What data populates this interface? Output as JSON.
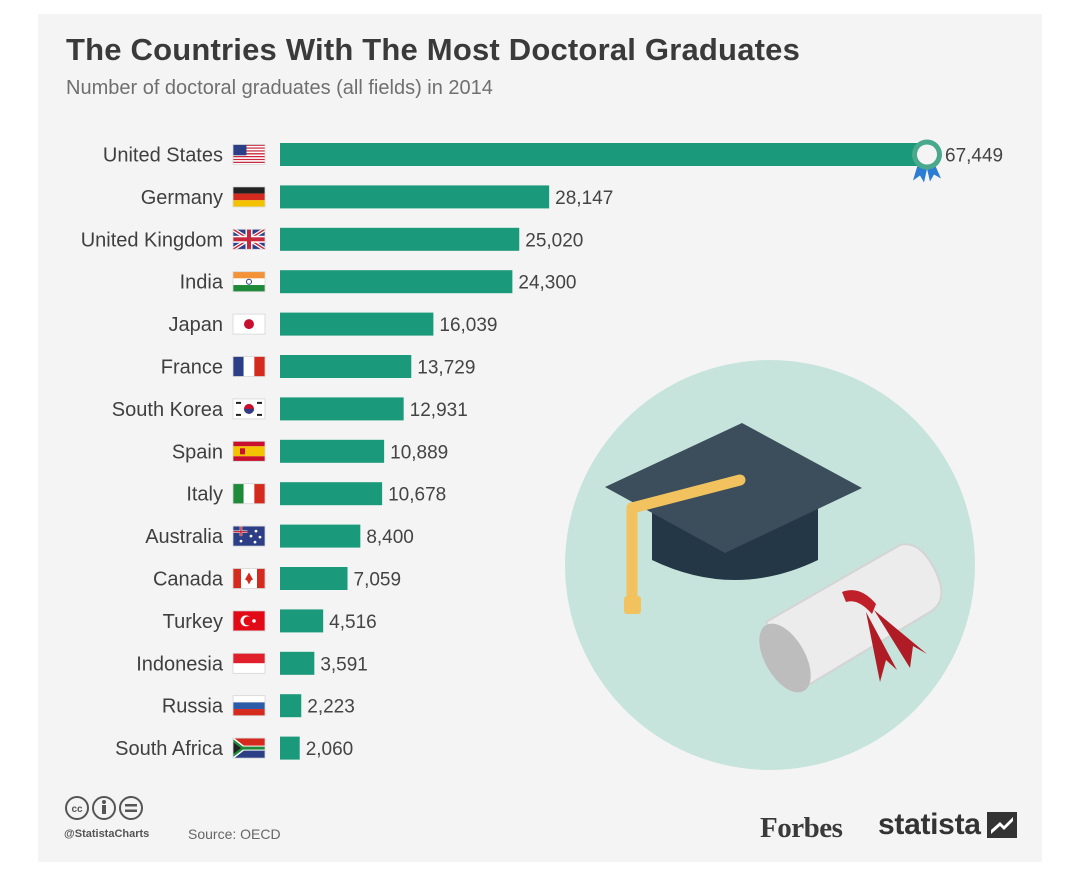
{
  "header": {
    "title": "The Countries With The Most Doctoral Graduates",
    "subtitle": "Number of doctoral graduates (all fields) in 2014"
  },
  "colors": {
    "bar": "#1a9a7b",
    "background": "#f4f4f4",
    "circle": "#c6e4db",
    "text": "#3f3f3f"
  },
  "chart_data": {
    "type": "bar",
    "orientation": "horizontal",
    "categories": [
      "United States",
      "Germany",
      "United Kingdom",
      "India",
      "Japan",
      "France",
      "South Korea",
      "Spain",
      "Italy",
      "Australia",
      "Canada",
      "Turkey",
      "Indonesia",
      "Russia",
      "South Africa"
    ],
    "values": [
      67449,
      28147,
      25020,
      24300,
      16039,
      13729,
      12931,
      10889,
      10678,
      8400,
      7059,
      4516,
      3591,
      2223,
      2060
    ],
    "value_labels": [
      "67,449",
      "28,147",
      "25,020",
      "24,300",
      "16,039",
      "13,729",
      "12,931",
      "10,889",
      "10,678",
      "8,400",
      "7,059",
      "4,516",
      "3,591",
      "2,223",
      "2,060"
    ],
    "flags": [
      "us-flag",
      "germany-flag",
      "uk-flag",
      "india-flag",
      "japan-flag",
      "france-flag",
      "south-korea-flag",
      "spain-flag",
      "italy-flag",
      "australia-flag",
      "canada-flag",
      "turkey-flag",
      "indonesia-flag",
      "russia-flag",
      "south-africa-flag"
    ],
    "grid": false,
    "legend": "none",
    "annotations": [
      "award-ribbon-icon on top bar",
      "graduation-cap and diploma illustration"
    ]
  },
  "footer": {
    "handle": "@StatistaCharts",
    "source": "Source: OECD",
    "license_icons": [
      "cc-icon",
      "by-icon",
      "nd-icon"
    ],
    "forbes": "Forbes",
    "statista": "statista"
  }
}
